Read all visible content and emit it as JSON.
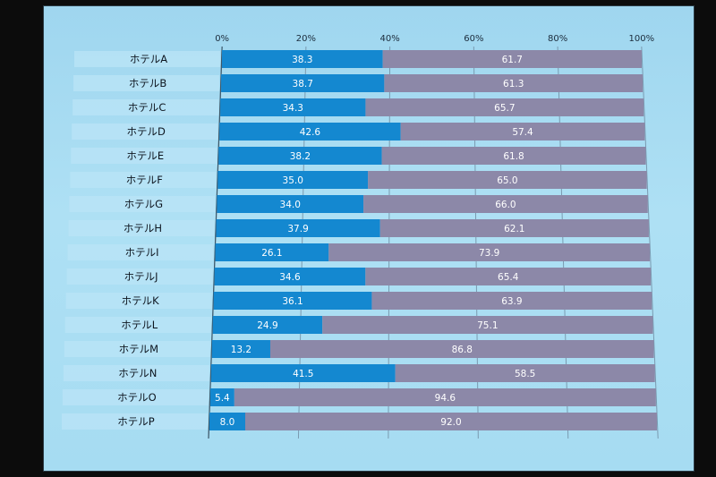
{
  "chart_data": {
    "type": "bar",
    "orientation": "horizontal",
    "stacked": "percent",
    "categories": [
      "ホテルA",
      "ホテルB",
      "ホテルC",
      "ホテルD",
      "ホテルE",
      "ホテルF",
      "ホテルG",
      "ホテルH",
      "ホテルI",
      "ホテルJ",
      "ホテルK",
      "ホテルL",
      "ホテルM",
      "ホテルN",
      "ホテルO",
      "ホテルP"
    ],
    "series": [
      {
        "values": [
          38.3,
          38.7,
          34.3,
          42.6,
          38.2,
          35.0,
          34.0,
          37.9,
          26.1,
          34.6,
          36.1,
          24.9,
          13.2,
          41.5,
          5.4,
          8.0
        ],
        "labels": [
          "38.3",
          "38.7",
          "34.3",
          "42.6",
          "38.2",
          "35.0",
          "34.0",
          "37.9",
          "26.1",
          "34.6",
          "36.1",
          "24.9",
          "13.2",
          "41.5",
          "5.4",
          "8.0"
        ],
        "color": "#1488d0"
      },
      {
        "values": [
          61.7,
          61.3,
          65.7,
          57.4,
          61.8,
          65.0,
          66.0,
          62.1,
          73.9,
          65.4,
          63.9,
          75.1,
          86.8,
          58.5,
          94.6,
          92.0
        ],
        "labels": [
          "61.7",
          "61.3",
          "65.7",
          "57.4",
          "61.8",
          "65.0",
          "66.0",
          "62.1",
          "73.9",
          "65.4",
          "63.9",
          "75.1",
          "86.8",
          "58.5",
          "94.6",
          "92.0"
        ],
        "color": "#8c88a8"
      }
    ],
    "x_ticks": [
      "0%",
      "20%",
      "40%",
      "60%",
      "80%",
      "100%"
    ],
    "xlim": [
      0,
      100
    ],
    "title": "",
    "xlabel": "",
    "ylabel": "",
    "grid": true,
    "legend": "none"
  }
}
